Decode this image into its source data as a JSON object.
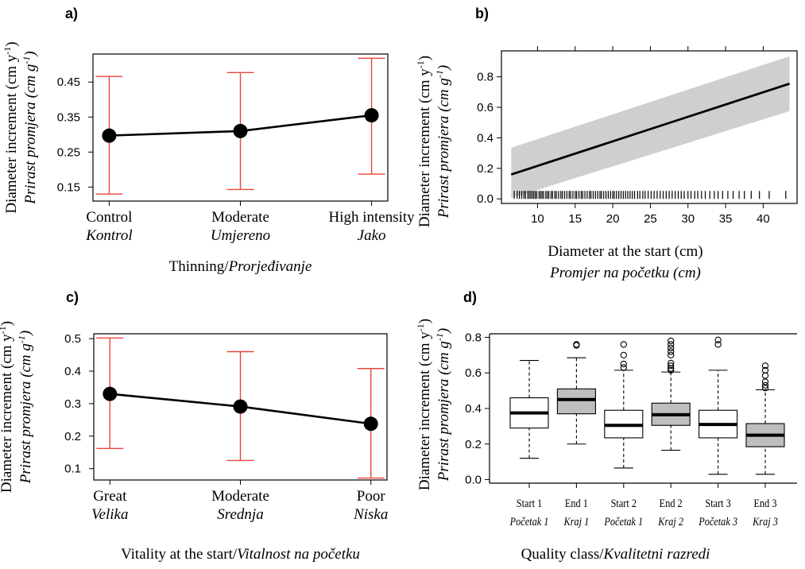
{
  "chart_data": [
    {
      "panel": "a)",
      "type": "line",
      "categories": [
        {
          "en": "Control",
          "hr": "Kontrol"
        },
        {
          "en": "Moderate",
          "hr": "Umjereno"
        },
        {
          "en": "High intensity",
          "hr": "Jako"
        }
      ],
      "values": [
        0.297,
        0.31,
        0.355
      ],
      "ci_low": [
        0.13,
        0.143,
        0.187
      ],
      "ci_high": [
        0.466,
        0.477,
        0.518
      ],
      "xlabel": "Thinning/",
      "xlabel_it": "Prorjeđivanje",
      "ylabel": "Diameter increment (cm y",
      "ylabel_sup": "-1",
      "ylabel2": "Prirast promjera (cm g",
      "ylabel2_sup": "-1",
      "yticks": [
        0.15,
        0.25,
        0.35,
        0.45
      ],
      "ylim": [
        0.11,
        0.53
      ]
    },
    {
      "panel": "b)",
      "type": "line",
      "x": [
        6.5,
        43.5
      ],
      "y": [
        0.16,
        0.755
      ],
      "band_low": [
        0.005,
        0.575
      ],
      "band_high": [
        0.335,
        0.935
      ],
      "rug_x": [
        6.9,
        7.3,
        7.6,
        7.9,
        8.2,
        8.4,
        8.7,
        8.9,
        9.1,
        9.3,
        9.5,
        9.7,
        9.9,
        10.2,
        10.4,
        10.6,
        10.8,
        11.1,
        11.3,
        11.5,
        11.8,
        12.0,
        12.3,
        12.5,
        12.8,
        13.1,
        13.3,
        13.6,
        13.9,
        14.2,
        14.4,
        14.7,
        15.0,
        15.2,
        15.5,
        15.8,
        16.0,
        16.3,
        16.6,
        16.9,
        17.1,
        17.4,
        17.7,
        18.0,
        18.3,
        18.5,
        18.8,
        19.1,
        19.4,
        19.7,
        20.0,
        20.2,
        20.5,
        20.8,
        21.1,
        21.4,
        21.7,
        22.0,
        22.3,
        22.6,
        22.9,
        23.3,
        23.6,
        24.0,
        24.3,
        24.7,
        25.1,
        25.5,
        25.9,
        26.3,
        26.7,
        27.1,
        27.5,
        27.9,
        28.3,
        28.7,
        29.1,
        29.5,
        30.0,
        30.4,
        30.9,
        31.3,
        31.8,
        32.3,
        32.9,
        33.5,
        34.0,
        34.6,
        35.3,
        36.0,
        36.8,
        37.5,
        38.4,
        39.5,
        40.8,
        43.0
      ],
      "xlabel": "Diameter at the start (cm)",
      "xlabel2": "Promjer na početku (cm)",
      "ylabel": "Diameter increment (cm y",
      "ylabel_sup": "-1",
      "ylabel2": "Prirast promjera (cm g",
      "ylabel2_sup": "-1",
      "xticks": [
        10,
        15,
        20,
        25,
        30,
        35,
        40
      ],
      "yticks": [
        0.0,
        0.2,
        0.4,
        0.6,
        0.8
      ],
      "ytick_labels": [
        "0.0",
        "0.2",
        "0.4",
        "0.6",
        "0.8"
      ],
      "xlim": [
        5.2,
        44.5
      ],
      "ylim": [
        -0.03,
        0.97
      ]
    },
    {
      "panel": "c)",
      "type": "line",
      "categories": [
        {
          "en": "Great",
          "hr": "Velika"
        },
        {
          "en": "Moderate",
          "hr": "Srednja"
        },
        {
          "en": "Poor",
          "hr": "Niska"
        }
      ],
      "values": [
        0.33,
        0.291,
        0.238
      ],
      "ci_low": [
        0.162,
        0.125,
        0.071
      ],
      "ci_high": [
        0.502,
        0.46,
        0.408
      ],
      "xlabel": "Vitality at the start/",
      "xlabel_it": "Vitalnost na početku",
      "ylabel": "Diameter increment (cm y",
      "ylabel_sup": "-1",
      "ylabel2": "Prirast promjera (cm g",
      "ylabel2_sup": "-1",
      "yticks": [
        0.1,
        0.2,
        0.3,
        0.4,
        0.5
      ],
      "ylim": [
        0.065,
        0.515
      ]
    },
    {
      "panel": "d)",
      "type": "box",
      "categories": [
        {
          "en": "Start 1",
          "hr": "Početak 1"
        },
        {
          "en": "End 1",
          "hr": "Kraj 1"
        },
        {
          "en": "Start 2",
          "hr": "Početak 1"
        },
        {
          "en": "End 2",
          "hr": "Kraj 2"
        },
        {
          "en": "Start 3",
          "hr": "Početak 3"
        },
        {
          "en": "End 3",
          "hr": "Kraj 3"
        }
      ],
      "boxes": [
        {
          "q1": 0.29,
          "median": 0.375,
          "q3": 0.46,
          "whisker_low": 0.12,
          "whisker_high": 0.67,
          "outliers": [],
          "fill": "#ffffff"
        },
        {
          "q1": 0.37,
          "median": 0.45,
          "q3": 0.51,
          "whisker_low": 0.2,
          "whisker_high": 0.685,
          "outliers": [
            0.755,
            0.76
          ],
          "fill": "#bebebe"
        },
        {
          "q1": 0.235,
          "median": 0.305,
          "q3": 0.39,
          "whisker_low": 0.065,
          "whisker_high": 0.615,
          "outliers": [
            0.63,
            0.65,
            0.7,
            0.76
          ],
          "fill": "#ffffff"
        },
        {
          "q1": 0.305,
          "median": 0.365,
          "q3": 0.43,
          "whisker_low": 0.165,
          "whisker_high": 0.605,
          "outliers": [
            0.615,
            0.625,
            0.64,
            0.655,
            0.7,
            0.72,
            0.74,
            0.76,
            0.78
          ],
          "fill": "#bebebe"
        },
        {
          "q1": 0.235,
          "median": 0.31,
          "q3": 0.39,
          "whisker_low": 0.03,
          "whisker_high": 0.615,
          "outliers": [
            0.76,
            0.785
          ],
          "fill": "#ffffff"
        },
        {
          "q1": 0.185,
          "median": 0.25,
          "q3": 0.315,
          "whisker_low": 0.03,
          "whisker_high": 0.505,
          "outliers": [
            0.515,
            0.53,
            0.55,
            0.585,
            0.615,
            0.64
          ],
          "fill": "#bebebe"
        }
      ],
      "xlabel": "Quality class/",
      "xlabel_it": "Kvalitetni razredi",
      "ylabel": "Diameter increment (cm y",
      "ylabel_sup": "-1",
      "ylabel2": "Prirast promjera (cm g",
      "ylabel2_sup": "-1",
      "yticks": [
        0.0,
        0.2,
        0.4,
        0.6,
        0.8
      ],
      "ytick_labels": [
        "0.0",
        "0.2",
        "0.4",
        "0.6",
        "0.8"
      ],
      "ylim": [
        -0.02,
        0.82
      ]
    }
  ],
  "colors": {
    "ci": "#e8463a",
    "band": "#cfcfcf",
    "line": "#000000",
    "box_end_fill": "#bebebe"
  }
}
